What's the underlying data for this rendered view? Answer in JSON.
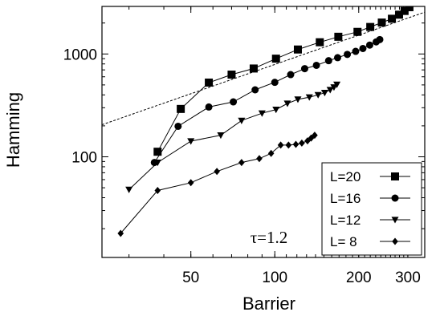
{
  "chart_data": {
    "type": "line",
    "xscale": "log",
    "yscale": "log",
    "xlabel": "Barrier",
    "ylabel": "Hamming",
    "xlim": [
      24,
      345
    ],
    "ylim": [
      10.5,
      2900
    ],
    "xticks": [
      50,
      100,
      200,
      300
    ],
    "xtick_labels": [
      "50",
      "100",
      "200",
      "300"
    ],
    "yticks": [
      100,
      1000
    ],
    "ytick_labels": [
      "100",
      "1000"
    ],
    "annotation": "τ=1.2",
    "legend_position": "bottom-right",
    "grid": false,
    "reference_line": {
      "style": "dashed",
      "points": [
        [
          24,
          205
        ],
        [
          345,
          2550
        ]
      ]
    },
    "series": [
      {
        "name": "L=20",
        "marker": "square",
        "points": [
          [
            38,
            112
          ],
          [
            46,
            292
          ],
          [
            58,
            527
          ],
          [
            70,
            630
          ],
          [
            84,
            722
          ],
          [
            101,
            900
          ],
          [
            121,
            1105
          ],
          [
            145,
            1300
          ],
          [
            169,
            1470
          ],
          [
            198,
            1640
          ],
          [
            220,
            1830
          ],
          [
            242,
            2020
          ],
          [
            263,
            2200
          ],
          [
            279,
            2410
          ],
          [
            292,
            2620
          ],
          [
            304,
            2850
          ]
        ]
      },
      {
        "name": "L=16",
        "marker": "circle",
        "points": [
          [
            37,
            88
          ],
          [
            45,
            198
          ],
          [
            58,
            305
          ],
          [
            71,
            342
          ],
          [
            85,
            448
          ],
          [
            100,
            530
          ],
          [
            114,
            630
          ],
          [
            128,
            720
          ],
          [
            141,
            775
          ],
          [
            156,
            860
          ],
          [
            168,
            920
          ],
          [
            182,
            990
          ],
          [
            195,
            1060
          ],
          [
            207,
            1130
          ],
          [
            219,
            1220
          ],
          [
            231,
            1310
          ],
          [
            238,
            1380
          ]
        ]
      },
      {
        "name": "L=12",
        "marker": "triangle-down",
        "points": [
          [
            30,
            48
          ],
          [
            38,
            88
          ],
          [
            50,
            142
          ],
          [
            64,
            162
          ],
          [
            76,
            225
          ],
          [
            90,
            265
          ],
          [
            101,
            288
          ],
          [
            111,
            330
          ],
          [
            121,
            362
          ],
          [
            133,
            380
          ],
          [
            143,
            400
          ],
          [
            151,
            420
          ],
          [
            158,
            448
          ],
          [
            163,
            475
          ],
          [
            167,
            505
          ]
        ]
      },
      {
        "name": "L=  8",
        "marker": "diamond",
        "points": [
          [
            28,
            18
          ],
          [
            38,
            47
          ],
          [
            50,
            56
          ],
          [
            62,
            72
          ],
          [
            76,
            88
          ],
          [
            88,
            96
          ],
          [
            97,
            108
          ],
          [
            105,
            130
          ],
          [
            112,
            130
          ],
          [
            119,
            132
          ],
          [
            125,
            136
          ],
          [
            131,
            143
          ],
          [
            135,
            152
          ],
          [
            139,
            162
          ]
        ]
      }
    ]
  }
}
